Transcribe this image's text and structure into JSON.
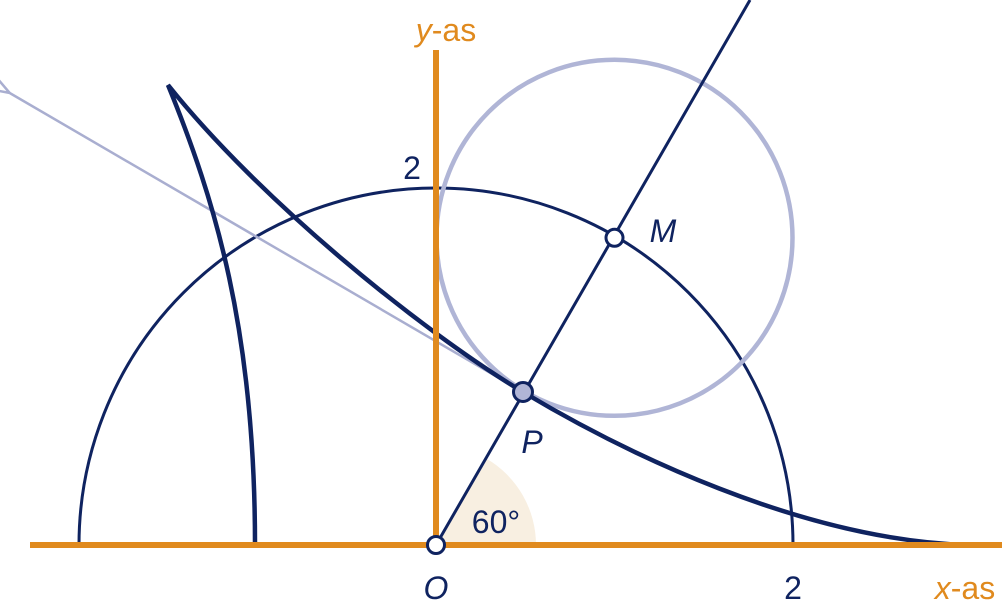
{
  "axes": {
    "y_axis": {
      "variable": "y",
      "suffix": "-as"
    },
    "x_axis": {
      "variable": "x",
      "suffix": "-as"
    }
  },
  "tick_labels": {
    "y": "2",
    "x": "2"
  },
  "points": {
    "origin": "O",
    "p": "P",
    "m": "M"
  },
  "angle_label": "60°"
}
